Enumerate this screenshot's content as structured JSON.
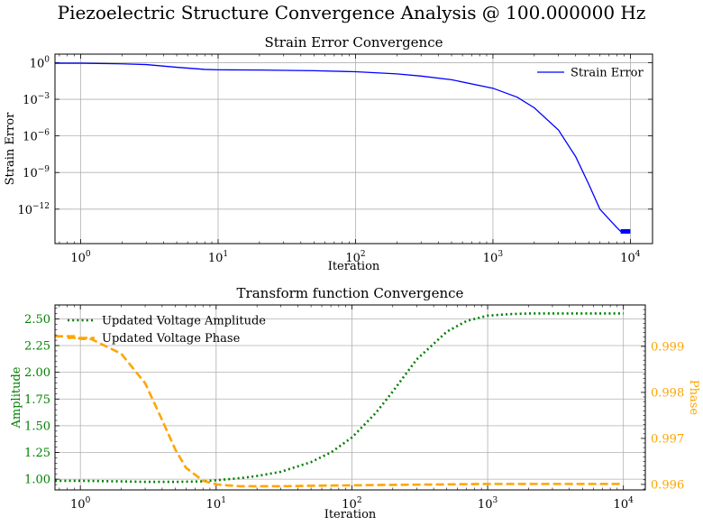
{
  "figure": {
    "suptitle": "Piezoelectric Structure Convergence Analysis @ 100.000000 Hz"
  },
  "chart_data": [
    {
      "type": "line",
      "title": "Strain Error Convergence",
      "xlabel": "Iteration",
      "ylabel": "Strain Error",
      "xscale": "log",
      "yscale": "log",
      "xlim": [
        0.65,
        14500
      ],
      "ylim": [
        1.5e-15,
        5
      ],
      "xticks": [
        1,
        10,
        100,
        1000,
        10000
      ],
      "xtick_labels": [
        {
          "base": "10",
          "exp": "0"
        },
        {
          "base": "10",
          "exp": "1"
        },
        {
          "base": "10",
          "exp": "2"
        },
        {
          "base": "10",
          "exp": "3"
        },
        {
          "base": "10",
          "exp": "4"
        }
      ],
      "yticks": [
        1,
        0.001,
        1e-06,
        1e-09,
        1e-12
      ],
      "ytick_labels": [
        {
          "base": "10",
          "exp": "0"
        },
        {
          "base": "10",
          "exp": "−3"
        },
        {
          "base": "10",
          "exp": "−6"
        },
        {
          "base": "10",
          "exp": "−9"
        },
        {
          "base": "10",
          "exp": "−12"
        }
      ],
      "grid": true,
      "legend": "top-right",
      "series": [
        {
          "name": "Strain Error",
          "color": "#0000ff",
          "style": "solid",
          "x": [
            0.65,
            1,
            2,
            3,
            5,
            8,
            10,
            20,
            50,
            100,
            200,
            300,
            500,
            1000,
            1500,
            2000,
            3000,
            4000,
            5000,
            6000,
            7000,
            8000,
            8500,
            9000,
            9500,
            10000
          ],
          "y": [
            0.9,
            0.9,
            0.8,
            0.7,
            0.42,
            0.28,
            0.26,
            0.25,
            0.22,
            0.18,
            0.12,
            0.08,
            0.04,
            0.008,
            0.0015,
            0.0002,
            3e-06,
            2e-08,
            1e-10,
            1e-12,
            1.5e-13,
            3e-14,
            1.5e-14,
            1.5e-14,
            1.5e-14,
            1.5e-14
          ]
        }
      ]
    },
    {
      "type": "line",
      "title": "Transform function Convergence",
      "xlabel": "Iteration",
      "ylabel": "Amplitude",
      "ylabel_right": "Phase",
      "xscale": "log",
      "xlim": [
        0.65,
        14500
      ],
      "ylim": [
        0.9,
        2.63
      ],
      "ylim_right": [
        0.99588,
        0.9999
      ],
      "xticks": [
        1,
        10,
        100,
        1000,
        10000
      ],
      "xtick_labels": [
        {
          "base": "10",
          "exp": "0"
        },
        {
          "base": "10",
          "exp": "1"
        },
        {
          "base": "10",
          "exp": "2"
        },
        {
          "base": "10",
          "exp": "3"
        },
        {
          "base": "10",
          "exp": "4"
        }
      ],
      "yticks": [
        1.0,
        1.25,
        1.5,
        1.75,
        2.0,
        2.25,
        2.5
      ],
      "ytick_labels": [
        "1.00",
        "1.25",
        "1.50",
        "1.75",
        "2.00",
        "2.25",
        "2.50"
      ],
      "yticks_right": [
        0.996,
        0.997,
        0.998,
        0.999
      ],
      "ytick_labels_right": [
        "0.996",
        "0.997",
        "0.998",
        "0.999"
      ],
      "grid": true,
      "legend": "top-left",
      "left_axis_color": "#008000",
      "right_axis_color": "#ffa500",
      "series": [
        {
          "name": "Updated Voltage Amplitude",
          "axis": "left",
          "color": "#008000",
          "style": "dotted",
          "x": [
            0.65,
            1,
            2,
            3,
            5,
            8,
            10,
            15,
            20,
            30,
            50,
            70,
            100,
            150,
            200,
            300,
            500,
            700,
            1000,
            1500,
            2000,
            3000,
            5000,
            10000
          ],
          "y": [
            0.985,
            0.985,
            0.98,
            0.975,
            0.975,
            0.98,
            0.99,
            1.01,
            1.03,
            1.07,
            1.16,
            1.25,
            1.39,
            1.62,
            1.82,
            2.12,
            2.38,
            2.48,
            2.53,
            2.545,
            2.55,
            2.55,
            2.55,
            2.55
          ]
        },
        {
          "name": "Updated Voltage Phase",
          "axis": "right",
          "color": "#ffa500",
          "style": "dashed",
          "x": [
            0.65,
            0.9,
            1,
            1.2,
            2,
            3,
            4,
            5,
            6,
            8,
            10,
            12,
            15,
            20,
            30,
            50,
            100,
            200,
            500,
            1000,
            2000,
            5000,
            10000
          ],
          "y": [
            0.99922,
            0.99922,
            0.99916,
            0.99916,
            0.99884,
            0.9982,
            0.9974,
            0.99676,
            0.99636,
            0.99608,
            0.996,
            0.99598,
            0.99596,
            0.99596,
            0.99596,
            0.99597,
            0.99598,
            0.99599,
            0.996,
            0.99601,
            0.99601,
            0.99601,
            0.99601
          ]
        }
      ]
    }
  ]
}
